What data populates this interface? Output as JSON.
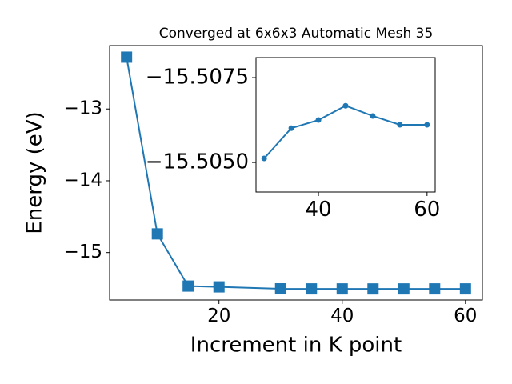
{
  "chart_data": [
    {
      "type": "line",
      "title": "Converged at 6x6x3 Automatic Mesh 35",
      "xlabel": "Increment in K point",
      "ylabel": "Energy (eV)",
      "x": [
        5,
        10,
        15,
        20,
        30,
        35,
        40,
        45,
        50,
        55,
        60
      ],
      "series": [
        {
          "color": "#1f77b4",
          "marker": "square",
          "values": [
            -12.278,
            -14.74,
            -15.467,
            -15.478,
            -15.50512,
            -15.50601,
            -15.50625,
            -15.50667,
            -15.50637,
            -15.50611,
            -15.50611
          ]
        }
      ],
      "xlim": [
        2.25,
        62.75
      ],
      "xticks": [
        20,
        40,
        60
      ],
      "ylim": [
        -15.661,
        -12.117
      ],
      "yticks": [
        {
          "value": -15,
          "label": "−15"
        },
        {
          "value": -14,
          "label": "−14"
        },
        {
          "value": -13,
          "label": "−13"
        }
      ]
    },
    {
      "type": "line",
      "x": [
        30,
        35,
        40,
        45,
        50,
        55,
        60
      ],
      "series": [
        {
          "color": "#1f77b4",
          "marker": "circle",
          "values": [
            -15.50512,
            -15.50601,
            -15.50625,
            -15.50667,
            -15.50637,
            -15.50611,
            -15.50611
          ]
        }
      ],
      "xlim": [
        28.5,
        61.5
      ],
      "xticks": [
        40,
        60
      ],
      "ylim": [
        -15.50413,
        -15.50809
      ],
      "yticks": [
        {
          "value": -15.505,
          "label": "−15.5050"
        },
        {
          "value": -15.5075,
          "label": "−15.5075"
        }
      ]
    }
  ]
}
